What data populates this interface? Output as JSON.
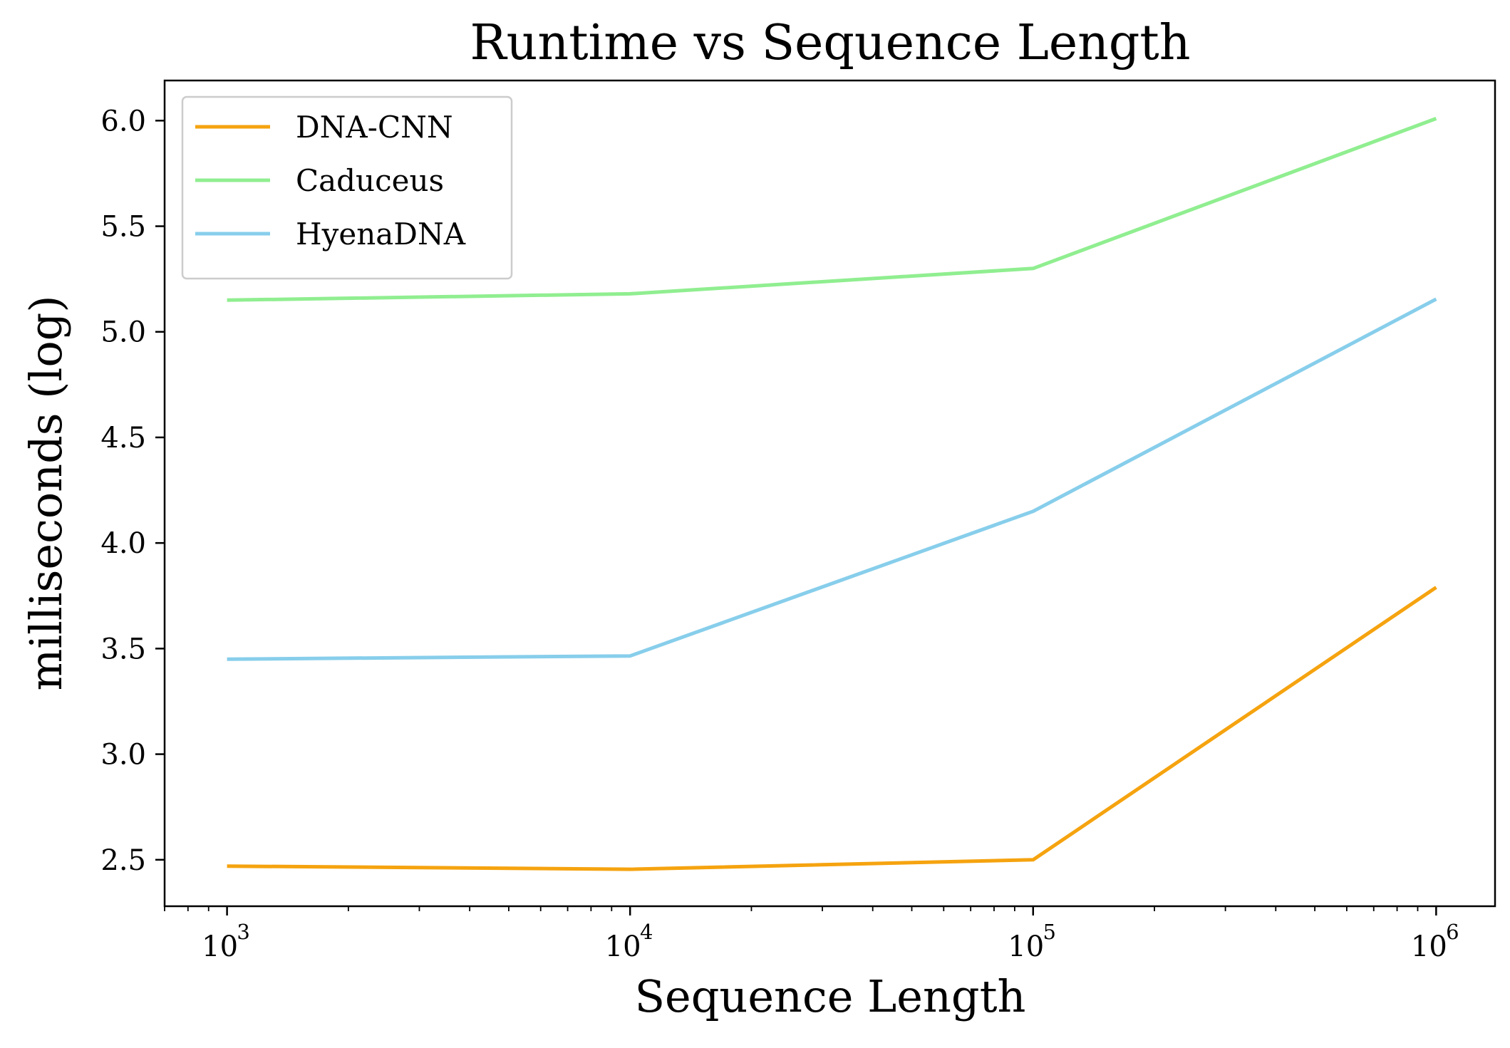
{
  "chart_data": {
    "type": "line",
    "title": "Runtime vs Sequence Length",
    "xlabel": "Sequence Length",
    "ylabel": "milliseconds (log)",
    "xscale": "log",
    "xlim": [
      700,
      1400000
    ],
    "ylim": [
      2.28,
      6.19
    ],
    "x": [
      1000,
      10000,
      100000,
      1000000
    ],
    "x_ticks": [
      {
        "base": "10",
        "exp": "3",
        "value": 1000
      },
      {
        "base": "10",
        "exp": "4",
        "value": 10000
      },
      {
        "base": "10",
        "exp": "5",
        "value": 100000
      },
      {
        "base": "10",
        "exp": "6",
        "value": 1000000
      }
    ],
    "y_ticks": [
      "2.5",
      "3.0",
      "3.5",
      "4.0",
      "4.5",
      "5.0",
      "5.5",
      "6.0"
    ],
    "grid": false,
    "legend_position": "top-left",
    "series": [
      {
        "name": "DNA-CNN",
        "color": "#F5A30F",
        "values": [
          2.47,
          2.455,
          2.5,
          3.79
        ]
      },
      {
        "name": "Caduceus",
        "color": "#90EE90",
        "values": [
          5.15,
          5.18,
          5.3,
          6.01
        ]
      },
      {
        "name": "HyenaDNA",
        "color": "#87CEEB",
        "values": [
          3.45,
          3.465,
          4.15,
          5.155
        ]
      }
    ]
  }
}
